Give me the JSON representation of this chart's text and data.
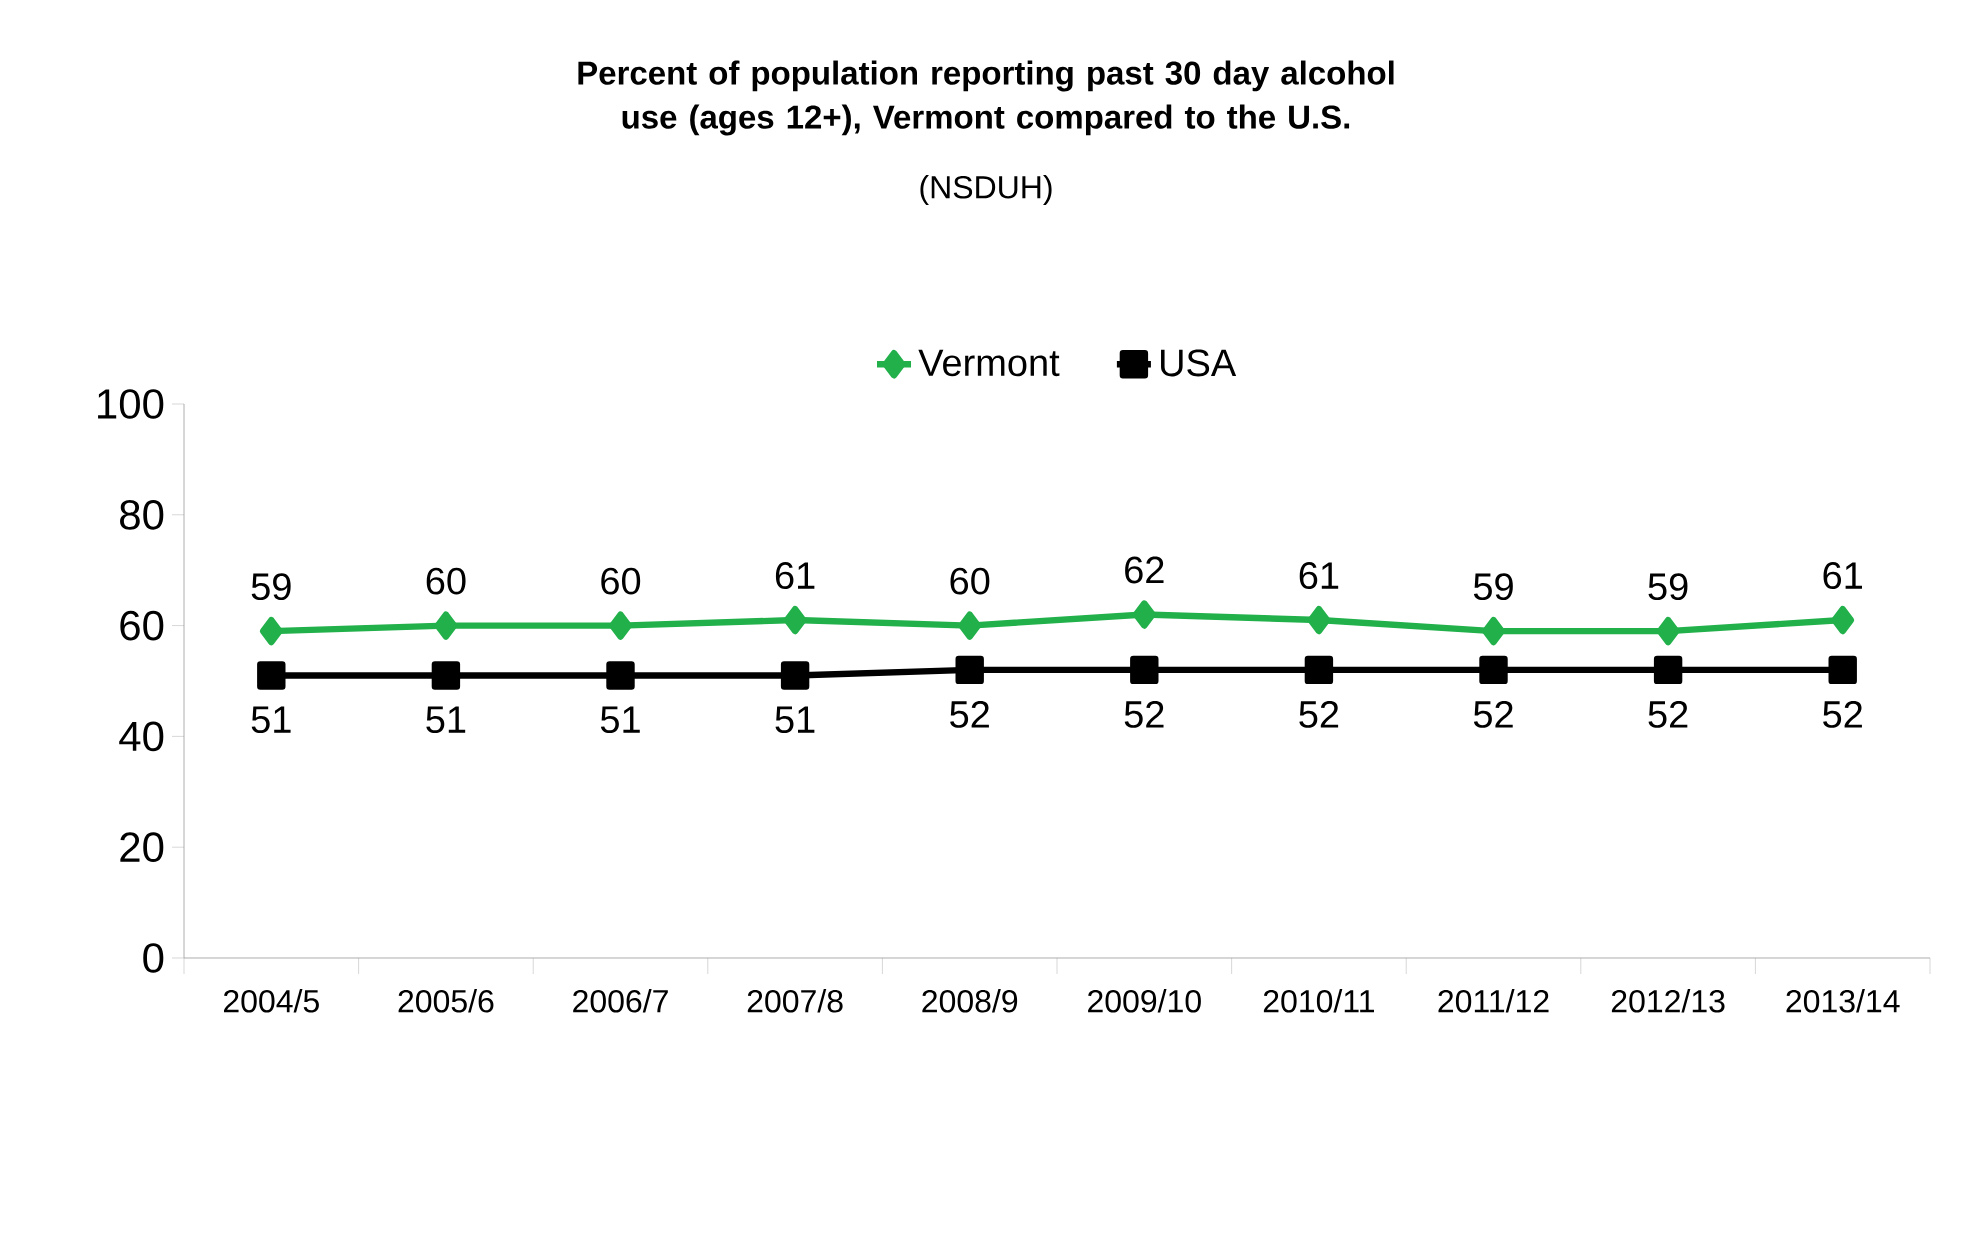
{
  "chart_data": {
    "type": "line",
    "title": "Percent of population reporting past 30 day alcohol use (ages 12+), Vermont compared to the U.S.",
    "subtitle": "(NSDUH)",
    "categories": [
      "2004/5",
      "2005/6",
      "2006/7",
      "2007/8",
      "2008/9",
      "2009/10",
      "2010/11",
      "2011/12",
      "2012/13",
      "2013/14"
    ],
    "series": [
      {
        "name": "Vermont",
        "color": "#22b04b",
        "marker": "diamond",
        "values": [
          59,
          60,
          60,
          61,
          60,
          62,
          61,
          59,
          59,
          61
        ]
      },
      {
        "name": "USA",
        "color": "#000000",
        "marker": "square",
        "values": [
          51,
          51,
          51,
          51,
          52,
          52,
          52,
          52,
          52,
          52
        ]
      }
    ],
    "ylim": [
      0,
      100
    ],
    "yticks": [
      0,
      20,
      40,
      60,
      80,
      100
    ],
    "legend": "top",
    "data_labels": true,
    "grid": false
  }
}
